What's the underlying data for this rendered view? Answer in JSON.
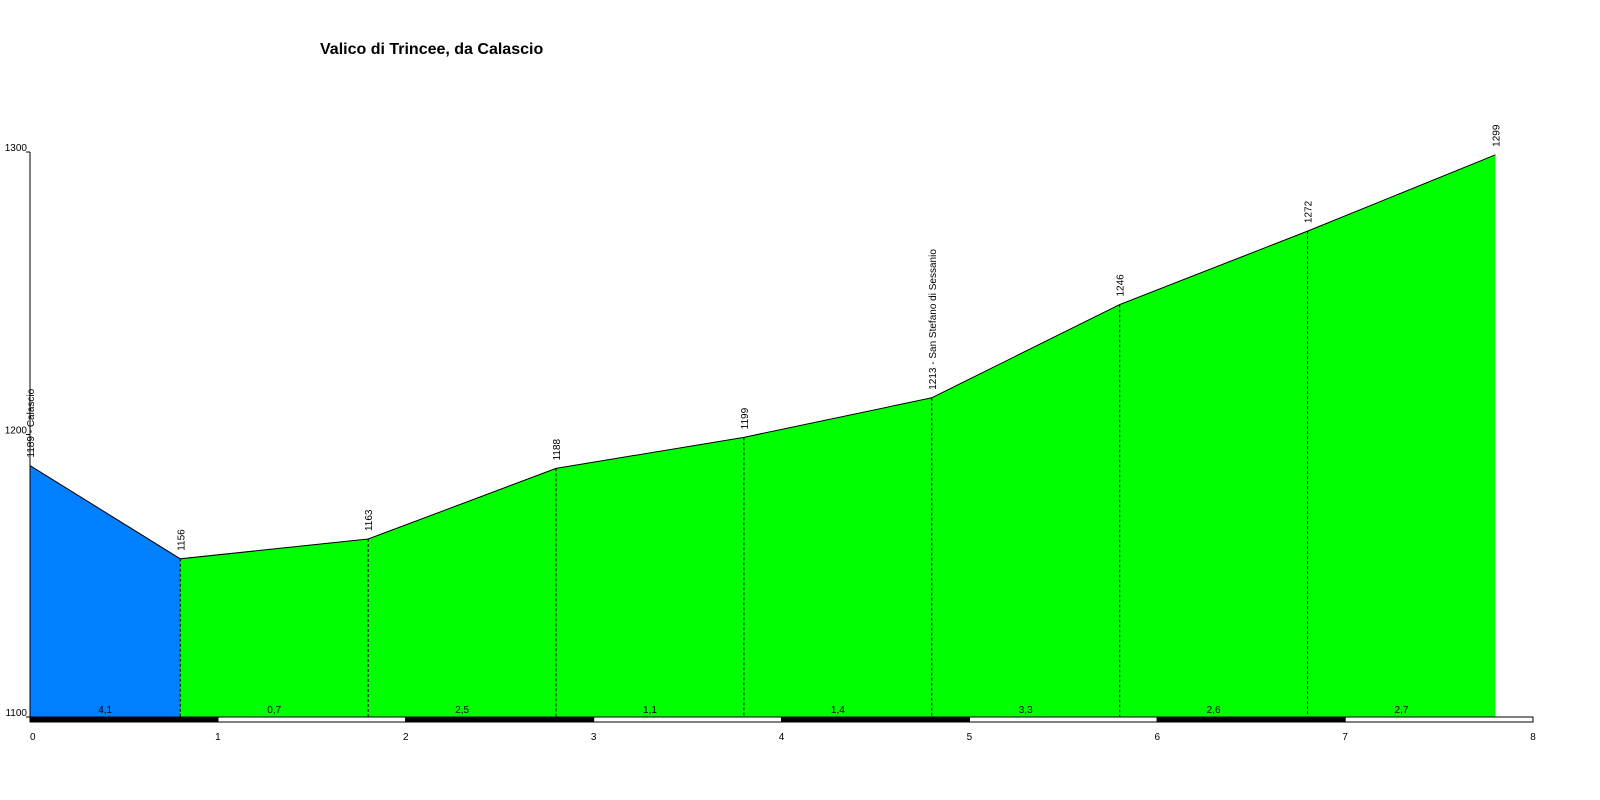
{
  "chart_data": {
    "type": "elevation-profile",
    "title": "Valico di Trincee, da Calascio",
    "x": [
      0,
      0.8,
      1.8,
      2.8,
      3.8,
      4.8,
      5.8,
      6.8,
      7.8
    ],
    "series": [
      {
        "values": [
          1189,
          1156,
          1163,
          1188,
          1199,
          1213,
          1246,
          1272,
          1299
        ],
        "value_labels": [
          "1189 - Calascio",
          "1156",
          "1163",
          "1188",
          "1199",
          "1213 - San Stefano di Sessanio",
          "1246",
          "1272",
          "1299"
        ]
      }
    ],
    "segments": {
      "values": [
        4.1,
        0.7,
        2.5,
        1.1,
        1.4,
        3.3,
        2.6,
        2.7
      ],
      "value_labels": [
        "4,1",
        "0,7",
        "2,5",
        "1,1",
        "1,4",
        "3,3",
        "2,6",
        "2,7"
      ],
      "colors": [
        "#0080ff",
        "#00ff00",
        "#00ff00",
        "#00ff00",
        "#00ff00",
        "#00ff00",
        "#00ff00",
        "#00ff00"
      ]
    },
    "xlim": [
      0,
      8
    ],
    "xticks": [
      0,
      1,
      2,
      3,
      4,
      5,
      6,
      7,
      8
    ],
    "ylim": [
      1100,
      1300
    ],
    "yticks": [
      1100,
      1200,
      1300
    ]
  }
}
